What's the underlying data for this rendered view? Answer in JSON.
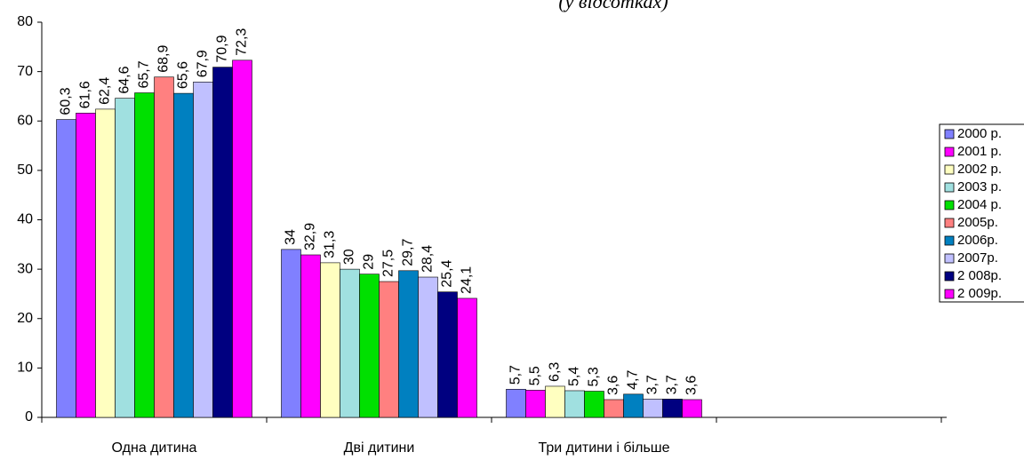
{
  "chart_data": {
    "type": "bar",
    "subtitle": "(у відсотках)",
    "categories": [
      "Одна дитина",
      "Дві дитини",
      "Три дитини і більше",
      null
    ],
    "series": [
      {
        "name": "2000 р.",
        "color": "#8080ff",
        "values": [
          60.3,
          34,
          5.7,
          null
        ],
        "value_labels": [
          "60,3",
          "34",
          "5,7",
          null
        ]
      },
      {
        "name": "2001 р.",
        "color": "#ff00ff",
        "values": [
          61.6,
          32.9,
          5.5,
          null
        ],
        "value_labels": [
          "61,6",
          "32,9",
          "5,5",
          null
        ]
      },
      {
        "name": "2002 р.",
        "color": "#ffffc0",
        "values": [
          62.4,
          31.3,
          6.3,
          null
        ],
        "value_labels": [
          "62,4",
          "31,3",
          "6,3",
          null
        ]
      },
      {
        "name": "2003 р.",
        "color": "#a0e0e0",
        "values": [
          64.6,
          30,
          5.4,
          null
        ],
        "value_labels": [
          "64,6",
          "30",
          "5,4",
          null
        ]
      },
      {
        "name": "2004 р.",
        "color": "#00e000",
        "values": [
          65.7,
          29,
          5.3,
          null
        ],
        "value_labels": [
          "65,7",
          "29",
          "5,3",
          null
        ]
      },
      {
        "name": "2005р.",
        "color": "#ff8080",
        "values": [
          68.9,
          27.5,
          3.6,
          null
        ],
        "value_labels": [
          "68,9",
          "27,5",
          "3,6",
          null
        ]
      },
      {
        "name": "2006р.",
        "color": "#0080c0",
        "values": [
          65.6,
          29.7,
          4.7,
          null
        ],
        "value_labels": [
          "65,6",
          "29,7",
          "4,7",
          null
        ]
      },
      {
        "name": "2007р.",
        "color": "#c0c0ff",
        "values": [
          67.9,
          28.4,
          3.7,
          null
        ],
        "value_labels": [
          "67,9",
          "28,4",
          "3,7",
          null
        ]
      },
      {
        "name": "2 008р.",
        "color": "#000080",
        "values": [
          70.9,
          25.4,
          3.7,
          null
        ],
        "value_labels": [
          "70,9",
          "25,4",
          "3,7",
          null
        ]
      },
      {
        "name": "2 009р.",
        "color": "#ff00ff",
        "values": [
          72.3,
          24.1,
          3.6,
          null
        ],
        "value_labels": [
          "72,3",
          "24,1",
          "3,6",
          null
        ]
      }
    ],
    "ylim": [
      0,
      80
    ],
    "yticks": [
      0,
      10,
      20,
      30,
      40,
      50,
      60,
      70,
      80
    ],
    "grid": false,
    "legend": "right"
  }
}
